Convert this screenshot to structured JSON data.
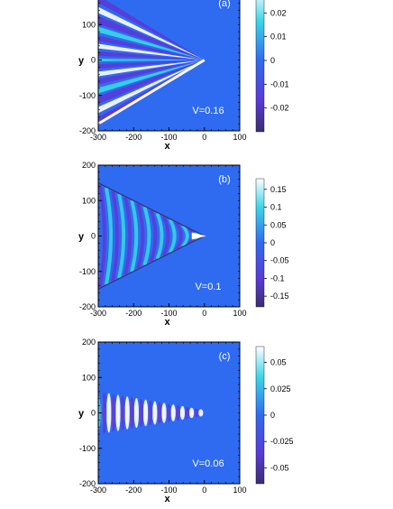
{
  "colors": {
    "background_field": "#2f6bf0",
    "deep_negative": "#3a2f6e",
    "purple": "#5a3ad8",
    "cyan": "#3ad8e8",
    "white": "#ffffff"
  },
  "chart_data": [
    {
      "type": "heatmap",
      "panel_label": "(a)",
      "annotation": "V=0.16",
      "xlabel": "x",
      "ylabel": "y",
      "xlim": [
        -300,
        100
      ],
      "ylim": [
        -200,
        200
      ],
      "xticks": [
        "-300",
        "-200",
        "-100",
        "0",
        "100"
      ],
      "yticks": [
        "100",
        "0",
        "-100",
        "-200"
      ],
      "colorbar_ticks": [
        "0.02",
        "0.01",
        "0",
        "-0.01",
        "-0.02"
      ],
      "colorbar_range": [
        -0.03,
        0.03
      ],
      "pattern": "wide-wake"
    },
    {
      "type": "heatmap",
      "panel_label": "(b)",
      "annotation": "V=0.1",
      "xlabel": "x",
      "ylabel": "y",
      "xlim": [
        -300,
        100
      ],
      "ylim": [
        -200,
        200
      ],
      "xticks": [
        "-300",
        "-200",
        "-100",
        "0",
        "100"
      ],
      "yticks": [
        "200",
        "100",
        "0",
        "-100",
        "-200"
      ],
      "colorbar_ticks": [
        "0.15",
        "0.1",
        "0.05",
        "0",
        "-0.05",
        "-0.1",
        "-0.15"
      ],
      "colorbar_range": [
        -0.18,
        0.18
      ],
      "pattern": "cone-wake"
    },
    {
      "type": "heatmap",
      "panel_label": "(c)",
      "annotation": "V=0.06",
      "xlabel": "x",
      "ylabel": "y",
      "xlim": [
        -300,
        100
      ],
      "ylim": [
        -200,
        200
      ],
      "xticks": [
        "-300",
        "-200",
        "-100",
        "0",
        "100"
      ],
      "yticks": [
        "200",
        "100",
        "0",
        "-100",
        "-200"
      ],
      "colorbar_ticks": [
        "0.05",
        "0.025",
        "0",
        "-0.025",
        "-0.05"
      ],
      "colorbar_range": [
        -0.065,
        0.065
      ],
      "pattern": "narrow-wake"
    }
  ]
}
